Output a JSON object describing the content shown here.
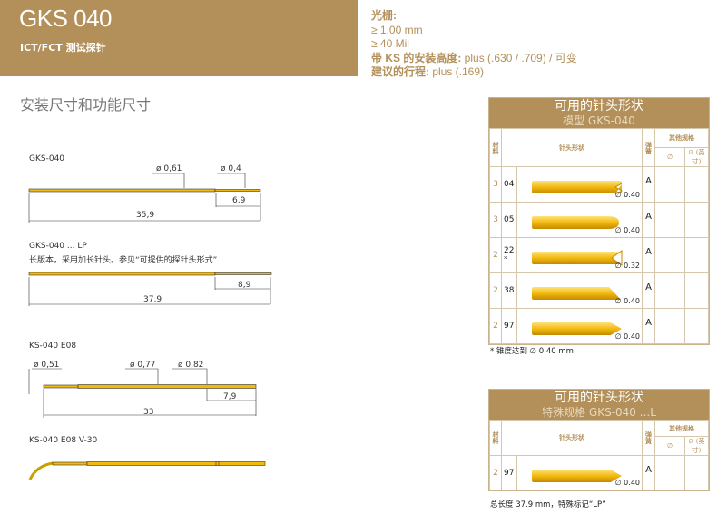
{
  "header": {
    "title": "GKS 040",
    "subtitle": "ICT/FCT 测试探针"
  },
  "specs": {
    "grid_label": "光栅:",
    "grid_mm": "≥ 1.00 mm",
    "grid_mil": "≥ 40 Mil",
    "height_label": "带 KS 的安装高度:",
    "height_value": " plus (.630 / .709) / 可变",
    "stroke_label": "建议的行程:",
    "stroke_value": " plus (.169)"
  },
  "section_title": "安装尺寸和功能尺寸",
  "drawings": [
    {
      "name": "GKS-040",
      "dims": [
        "ø 0,61",
        "ø 0,4",
        "6,9",
        "35,9"
      ]
    },
    {
      "name": "GKS-040 ... LP",
      "desc": "长版本，采用加长针头。参见“可提供的探针头形式”",
      "dims": [
        "8,9",
        "37,9"
      ]
    },
    {
      "name": "KS-040 E08",
      "dims": [
        "ø 0,51",
        "ø 0,77",
        "ø 0,82",
        "7,9",
        "33"
      ]
    },
    {
      "name": "KS-040 E08 V-30"
    }
  ],
  "table1": {
    "title": "可用的针头形状",
    "subtitle": "模型 GKS-040",
    "headers": {
      "material": "材料",
      "shape": "针头形状",
      "spring": "弹簧",
      "other": "其他规格",
      "dia": "∅",
      "dia_inch": "∅ (英寸)"
    },
    "rows": [
      {
        "material": "3",
        "code": "04",
        "dia": "∅ 0.40",
        "spring": "A",
        "tip": "crown"
      },
      {
        "material": "3",
        "code": "05",
        "dia": "∅ 0.40",
        "spring": "A",
        "tip": "round"
      },
      {
        "material": "2",
        "code": "22",
        "mark": "*",
        "dia": "∅ 0.32",
        "spring": "A",
        "tip": "v-notch"
      },
      {
        "material": "2",
        "code": "38",
        "dia": "∅ 0.40",
        "spring": "A",
        "tip": "chisel"
      },
      {
        "material": "2",
        "code": "97",
        "dia": "∅ 0.40",
        "spring": "A",
        "tip": "point"
      }
    ],
    "footnote": "* 锥度达到 ∅ 0.40 mm"
  },
  "table2": {
    "title": "可用的针头形状",
    "subtitle": "特殊规格 GKS-040 ...L",
    "headers": {
      "material": "材料",
      "shape": "针头形状",
      "spring": "弹簧",
      "other": "其他规格",
      "dia": "∅",
      "dia_inch": "∅ (英寸)"
    },
    "rows": [
      {
        "material": "2",
        "code": "97",
        "dia": "∅ 0.40",
        "spring": "A",
        "tip": "point"
      }
    ],
    "footnote": "总长度 37.9 mm，特殊标记“LP”"
  },
  "colors": {
    "brand": "#b38f59",
    "probe": "#f2b90f"
  }
}
